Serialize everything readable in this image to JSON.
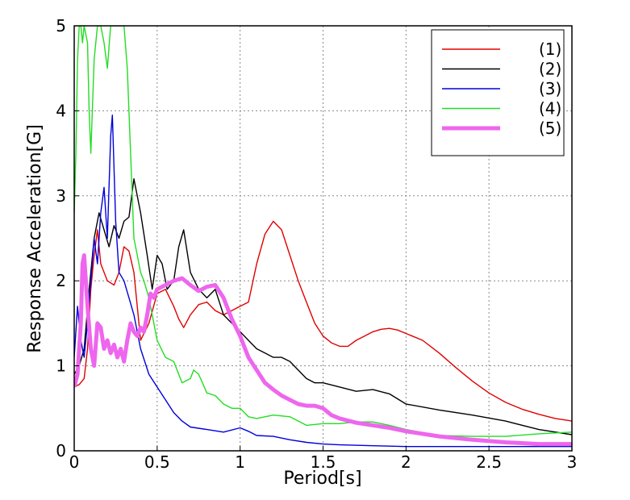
{
  "chart_data": {
    "type": "line",
    "title": "",
    "xlabel": "Period[s]",
    "ylabel": "Response Acceleration[G]",
    "xlim": [
      0,
      3
    ],
    "ylim": [
      0,
      5
    ],
    "xticks": [
      0,
      0.5,
      1,
      1.5,
      2,
      2.5,
      3
    ],
    "xtick_labels": [
      "0",
      "0.5",
      "1",
      "1.5",
      "2",
      "2.5",
      "3"
    ],
    "yticks": [
      0,
      1,
      2,
      3,
      4,
      5
    ],
    "ytick_labels": [
      "0",
      "1",
      "2",
      "3",
      "4",
      "5"
    ],
    "grid": true,
    "legend_position": "top-right",
    "series": [
      {
        "name": "(1)",
        "color": "#e00000",
        "x": [
          0,
          0.03,
          0.06,
          0.08,
          0.1,
          0.12,
          0.14,
          0.16,
          0.2,
          0.24,
          0.27,
          0.3,
          0.33,
          0.36,
          0.4,
          0.45,
          0.5,
          0.55,
          0.6,
          0.63,
          0.66,
          0.7,
          0.75,
          0.8,
          0.85,
          0.9,
          0.95,
          1.0,
          1.05,
          1.1,
          1.15,
          1.2,
          1.25,
          1.3,
          1.35,
          1.4,
          1.45,
          1.5,
          1.55,
          1.6,
          1.65,
          1.7,
          1.75,
          1.8,
          1.85,
          1.9,
          1.95,
          2.0,
          2.1,
          2.2,
          2.3,
          2.4,
          2.5,
          2.6,
          2.7,
          2.8,
          2.9,
          3.0
        ],
        "y": [
          0.75,
          0.78,
          0.85,
          1.2,
          1.9,
          2.3,
          2.6,
          2.2,
          2.0,
          1.95,
          2.1,
          2.4,
          2.35,
          2.1,
          1.3,
          1.5,
          1.85,
          1.9,
          1.7,
          1.55,
          1.45,
          1.6,
          1.72,
          1.75,
          1.65,
          1.6,
          1.65,
          1.7,
          1.75,
          2.2,
          2.55,
          2.7,
          2.6,
          2.3,
          2.0,
          1.75,
          1.5,
          1.35,
          1.27,
          1.23,
          1.23,
          1.3,
          1.35,
          1.4,
          1.43,
          1.44,
          1.42,
          1.38,
          1.3,
          1.15,
          0.98,
          0.82,
          0.68,
          0.57,
          0.49,
          0.43,
          0.38,
          0.35
        ]
      },
      {
        "name": "(2)",
        "color": "#000000",
        "x": [
          0,
          0.03,
          0.06,
          0.09,
          0.12,
          0.15,
          0.18,
          0.21,
          0.24,
          0.27,
          0.3,
          0.33,
          0.36,
          0.4,
          0.44,
          0.47,
          0.5,
          0.53,
          0.56,
          0.6,
          0.63,
          0.66,
          0.7,
          0.75,
          0.8,
          0.85,
          0.9,
          0.95,
          1.0,
          1.05,
          1.1,
          1.15,
          1.2,
          1.25,
          1.3,
          1.35,
          1.4,
          1.45,
          1.5,
          1.6,
          1.7,
          1.8,
          1.9,
          2.0,
          2.2,
          2.4,
          2.6,
          2.8,
          3.0
        ],
        "y": [
          0.9,
          1.0,
          1.2,
          1.9,
          2.5,
          2.8,
          2.6,
          2.4,
          2.65,
          2.5,
          2.7,
          2.75,
          3.2,
          2.8,
          2.3,
          1.9,
          2.3,
          2.2,
          1.9,
          2.0,
          2.4,
          2.6,
          2.1,
          1.9,
          1.8,
          1.9,
          1.6,
          1.5,
          1.4,
          1.3,
          1.2,
          1.15,
          1.1,
          1.1,
          1.05,
          0.95,
          0.85,
          0.8,
          0.8,
          0.75,
          0.7,
          0.72,
          0.67,
          0.55,
          0.48,
          0.42,
          0.35,
          0.25,
          0.19
        ]
      },
      {
        "name": "(3)",
        "color": "#0000dd",
        "x": [
          0,
          0.02,
          0.04,
          0.06,
          0.08,
          0.1,
          0.12,
          0.14,
          0.16,
          0.18,
          0.2,
          0.22,
          0.23,
          0.25,
          0.27,
          0.3,
          0.33,
          0.36,
          0.4,
          0.45,
          0.5,
          0.55,
          0.6,
          0.65,
          0.7,
          0.8,
          0.9,
          1.0,
          1.05,
          1.1,
          1.2,
          1.3,
          1.4,
          1.5,
          1.6,
          1.8,
          2.0,
          2.2,
          2.4,
          2.6,
          2.8,
          3.0
        ],
        "y": [
          1.1,
          1.7,
          1.3,
          1.1,
          1.5,
          2.0,
          2.5,
          2.2,
          2.8,
          3.1,
          2.5,
          3.7,
          3.95,
          2.7,
          2.1,
          2.0,
          1.8,
          1.6,
          1.2,
          0.9,
          0.75,
          0.6,
          0.45,
          0.35,
          0.28,
          0.25,
          0.22,
          0.27,
          0.23,
          0.18,
          0.17,
          0.13,
          0.1,
          0.08,
          0.07,
          0.06,
          0.05,
          0.05,
          0.05,
          0.05,
          0.05,
          0.05
        ]
      },
      {
        "name": "(4)",
        "color": "#22dd22",
        "x": [
          0,
          0.01,
          0.02,
          0.03,
          0.04,
          0.05,
          0.06,
          0.08,
          0.09,
          0.1,
          0.12,
          0.14,
          0.16,
          0.18,
          0.2,
          0.22,
          0.25,
          0.28,
          0.3,
          0.32,
          0.34,
          0.36,
          0.38,
          0.4,
          0.42,
          0.45,
          0.5,
          0.55,
          0.6,
          0.65,
          0.7,
          0.72,
          0.75,
          0.8,
          0.85,
          0.9,
          0.95,
          1.0,
          1.05,
          1.1,
          1.2,
          1.3,
          1.4,
          1.5,
          1.6,
          1.7,
          1.8,
          1.9,
          2.0,
          2.2,
          2.4,
          2.6,
          2.8,
          3.0
        ],
        "y": [
          2.8,
          3.5,
          4.6,
          5.0,
          5.0,
          4.8,
          5.0,
          4.8,
          4.0,
          3.5,
          4.6,
          5.0,
          5.0,
          4.8,
          4.5,
          5.0,
          5.0,
          5.0,
          5.0,
          4.5,
          3.5,
          2.5,
          2.3,
          2.1,
          2.0,
          1.8,
          1.3,
          1.1,
          1.05,
          0.8,
          0.85,
          0.95,
          0.9,
          0.68,
          0.65,
          0.55,
          0.5,
          0.5,
          0.4,
          0.38,
          0.42,
          0.4,
          0.3,
          0.32,
          0.32,
          0.34,
          0.34,
          0.3,
          0.25,
          0.18,
          0.17,
          0.17,
          0.2,
          0.22
        ]
      },
      {
        "name": "(5)",
        "color": "#ee66ee",
        "x": [
          0,
          0.02,
          0.04,
          0.05,
          0.06,
          0.08,
          0.1,
          0.12,
          0.14,
          0.16,
          0.18,
          0.2,
          0.22,
          0.24,
          0.26,
          0.28,
          0.3,
          0.32,
          0.34,
          0.36,
          0.38,
          0.4,
          0.42,
          0.44,
          0.46,
          0.48,
          0.5,
          0.55,
          0.6,
          0.65,
          0.7,
          0.75,
          0.8,
          0.85,
          0.9,
          0.95,
          1.0,
          1.05,
          1.1,
          1.15,
          1.2,
          1.25,
          1.3,
          1.35,
          1.4,
          1.45,
          1.5,
          1.55,
          1.6,
          1.7,
          1.8,
          1.9,
          2.0,
          2.2,
          2.4,
          2.6,
          2.8,
          3.0
        ],
        "y": [
          0.75,
          0.9,
          1.5,
          2.2,
          2.3,
          1.7,
          1.2,
          1.0,
          1.5,
          1.45,
          1.2,
          1.3,
          1.15,
          1.25,
          1.1,
          1.2,
          1.05,
          1.3,
          1.5,
          1.4,
          1.35,
          1.45,
          1.4,
          1.6,
          1.85,
          1.8,
          1.9,
          1.95,
          2.0,
          2.03,
          1.95,
          1.88,
          1.93,
          1.95,
          1.8,
          1.55,
          1.35,
          1.1,
          0.95,
          0.8,
          0.72,
          0.65,
          0.6,
          0.55,
          0.53,
          0.53,
          0.5,
          0.42,
          0.38,
          0.33,
          0.3,
          0.27,
          0.23,
          0.17,
          0.13,
          0.1,
          0.08,
          0.08
        ]
      }
    ]
  }
}
